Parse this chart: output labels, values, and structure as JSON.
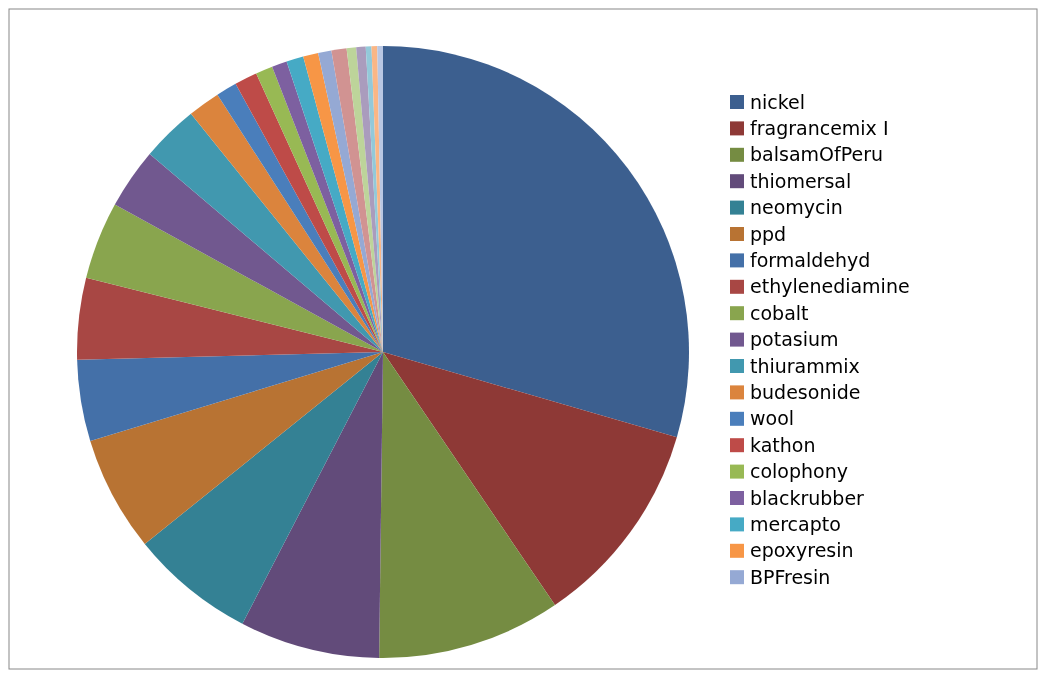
{
  "chart_data": {
    "type": "pie",
    "legend": "right",
    "categories": [
      "nickel",
      "fragrancemix I",
      "balsamOfPeru",
      "thiomersal",
      "neomycin",
      "ppd",
      "formaldehyd",
      "ethylenediamine",
      "cobalt",
      "potasium",
      "thiurammix",
      "budesonide",
      "wool",
      "kathon",
      "colophony",
      "blackrubber",
      "mercapto",
      "epoxyresin",
      "BPFresin",
      null,
      null,
      null,
      null,
      null,
      null
    ],
    "values": [
      29.5,
      11.0,
      9.7,
      7.4,
      6.6,
      6.1,
      4.3,
      4.3,
      4.1,
      3.2,
      3.0,
      1.7,
      1.1,
      1.2,
      0.9,
      0.8,
      0.9,
      0.8,
      0.7,
      0.8,
      0.5,
      0.5,
      0.3,
      0.3,
      0.3
    ],
    "colors": [
      "#3c5f8f",
      "#8e3936",
      "#758c42",
      "#624b7a",
      "#348194",
      "#b87333",
      "#4470a8",
      "#a84744",
      "#89a54e",
      "#71588f",
      "#4198af",
      "#db843d",
      "#4a7ebb",
      "#be4b48",
      "#98b954",
      "#7d60a0",
      "#46aac5",
      "#f79646",
      "#95a9d4",
      "#d19392",
      "#bdd49a",
      "#aa9cbd",
      "#93c9d9",
      "#fab685",
      "#b9c7e3"
    ]
  }
}
